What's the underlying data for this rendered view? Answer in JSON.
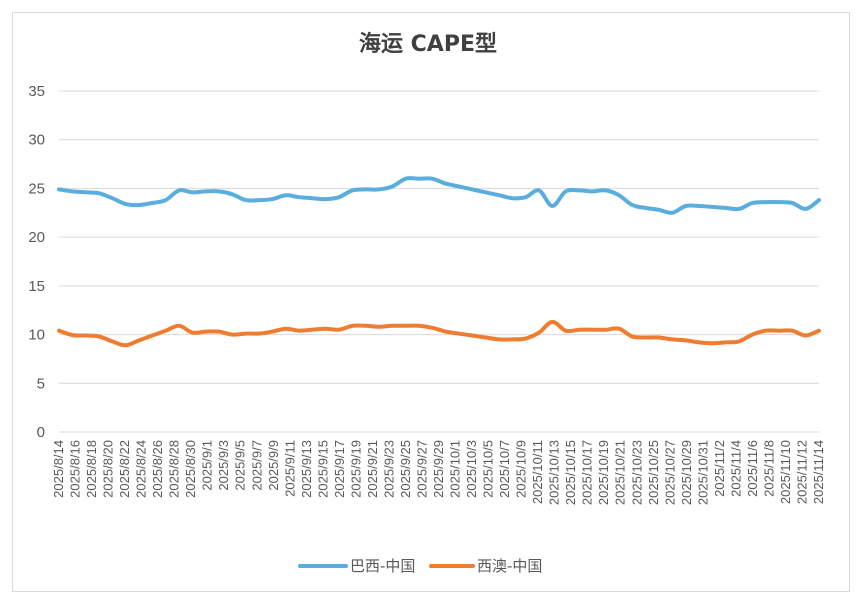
{
  "chart_data": {
    "type": "line",
    "title": "海运 CAPE型",
    "xlabel": "",
    "ylabel": "",
    "ylim": [
      0,
      35
    ],
    "yticks": [
      0,
      5,
      10,
      15,
      20,
      25,
      30,
      35
    ],
    "grid": true,
    "legend_position": "bottom",
    "x_tick_labels": [
      "2025/8/14",
      "2025/8/16",
      "2025/8/18",
      "2025/8/20",
      "2025/8/22",
      "2025/8/24",
      "2025/8/26",
      "2025/8/28",
      "2025/8/30",
      "2025/9/1",
      "2025/9/3",
      "2025/9/5",
      "2025/9/7",
      "2025/9/9",
      "2025/9/11",
      "2025/9/13",
      "2025/9/15",
      "2025/9/17",
      "2025/9/19",
      "2025/9/21",
      "2025/9/23",
      "2025/9/25",
      "2025/9/27",
      "2025/9/29",
      "2025/10/1",
      "2025/10/3",
      "2025/10/5",
      "2025/10/7",
      "2025/10/9",
      "2025/10/11",
      "2025/10/13",
      "2025/10/15",
      "2025/10/17",
      "2025/10/19",
      "2025/10/21",
      "2025/10/23",
      "2025/10/25",
      "2025/10/27",
      "2025/10/29",
      "2025/10/31",
      "2025/11/2",
      "2025/11/4",
      "2025/11/6",
      "2025/11/8",
      "2025/11/10",
      "2025/11/12",
      "2025/11/14"
    ],
    "series": [
      {
        "name": "巴西-中国",
        "color": "#5aaede",
        "values": [
          24.9,
          24.7,
          24.6,
          24.5,
          24.0,
          23.4,
          23.3,
          23.5,
          23.8,
          24.8,
          24.6,
          24.7,
          24.7,
          24.4,
          23.8,
          23.8,
          23.9,
          24.3,
          24.1,
          24.0,
          23.9,
          24.1,
          24.8,
          24.9,
          24.9,
          25.2,
          26.0,
          26.0,
          26.0,
          25.5,
          25.2,
          24.9,
          24.6,
          24.3,
          24.0,
          24.1,
          24.8,
          23.2,
          24.7,
          24.8,
          24.7,
          24.8,
          24.3,
          23.3,
          23.0,
          22.8,
          22.5,
          23.2,
          23.2,
          23.1,
          23.0,
          22.9,
          23.5,
          23.6,
          23.6,
          23.5,
          22.9,
          23.8
        ],
        "legend_label": "巴西-中国"
      },
      {
        "name": "西澳-中国",
        "color": "#ee7d31",
        "values": [
          10.4,
          9.95,
          9.9,
          9.8,
          9.3,
          8.9,
          9.4,
          9.9,
          10.4,
          10.9,
          10.2,
          10.3,
          10.3,
          10.0,
          10.1,
          10.1,
          10.3,
          10.6,
          10.4,
          10.5,
          10.6,
          10.5,
          10.9,
          10.9,
          10.8,
          10.9,
          10.9,
          10.9,
          10.7,
          10.3,
          10.1,
          9.9,
          9.7,
          9.5,
          9.5,
          9.6,
          10.2,
          11.3,
          10.4,
          10.5,
          10.5,
          10.5,
          10.6,
          9.8,
          9.7,
          9.7,
          9.5,
          9.4,
          9.2,
          9.1,
          9.2,
          9.3,
          10.0,
          10.4,
          10.4,
          10.4,
          9.9,
          10.4
        ],
        "legend_label": "西澳-中国"
      }
    ]
  }
}
